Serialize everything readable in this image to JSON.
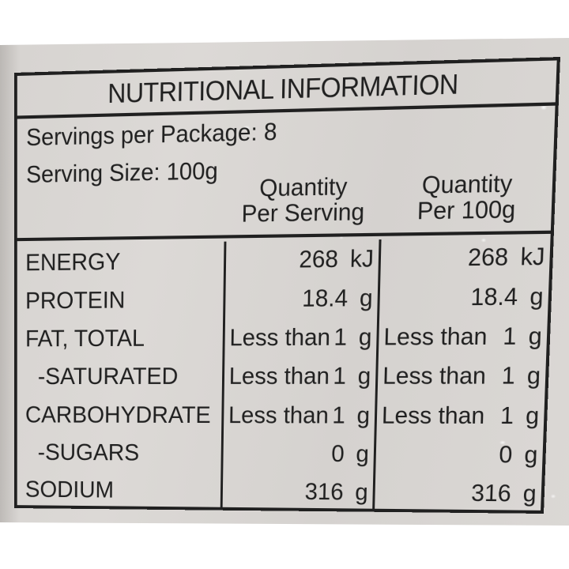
{
  "colors": {
    "photo_bg": "#ffffff",
    "package_bg": "#d8d5d2",
    "ink": "#202020"
  },
  "label": {
    "title": "NUTRITIONAL INFORMATION",
    "servings_per_package": "Servings per Package: 8",
    "serving_size": "Serving Size: 100g",
    "columns": {
      "per_serving": {
        "line1": "Quantity",
        "line2": "Per Serving"
      },
      "per_100g": {
        "line1": "Quantity",
        "line2": "Per 100g"
      }
    },
    "rows": [
      {
        "label": "ENERGY",
        "per_serving": {
          "pre": "",
          "value": "268 kJ"
        },
        "per_100g": {
          "pre": "",
          "value": "268 kJ"
        }
      },
      {
        "label": "PROTEIN",
        "per_serving": {
          "pre": "",
          "value": "18.4 g"
        },
        "per_100g": {
          "pre": "",
          "value": "18.4 g"
        }
      },
      {
        "label": "FAT, TOTAL",
        "per_serving": {
          "pre": "Less than",
          "value": "1 g"
        },
        "per_100g": {
          "pre": "Less than",
          "value": "1 g"
        }
      },
      {
        "label": "-SATURATED",
        "per_serving": {
          "pre": "Less than",
          "value": "1 g"
        },
        "per_100g": {
          "pre": "Less than",
          "value": "1 g"
        }
      },
      {
        "label": "CARBOHYDRATE",
        "per_serving": {
          "pre": "Less than",
          "value": "1 g"
        },
        "per_100g": {
          "pre": "Less than",
          "value": "1 g"
        }
      },
      {
        "label": "-SUGARS",
        "per_serving": {
          "pre": "",
          "value": "0 g"
        },
        "per_100g": {
          "pre": "",
          "value": "0 g"
        }
      },
      {
        "label": "SODIUM",
        "per_serving": {
          "pre": "",
          "value": "316 g"
        },
        "per_100g": {
          "pre": "",
          "value": "316 g"
        }
      }
    ]
  }
}
